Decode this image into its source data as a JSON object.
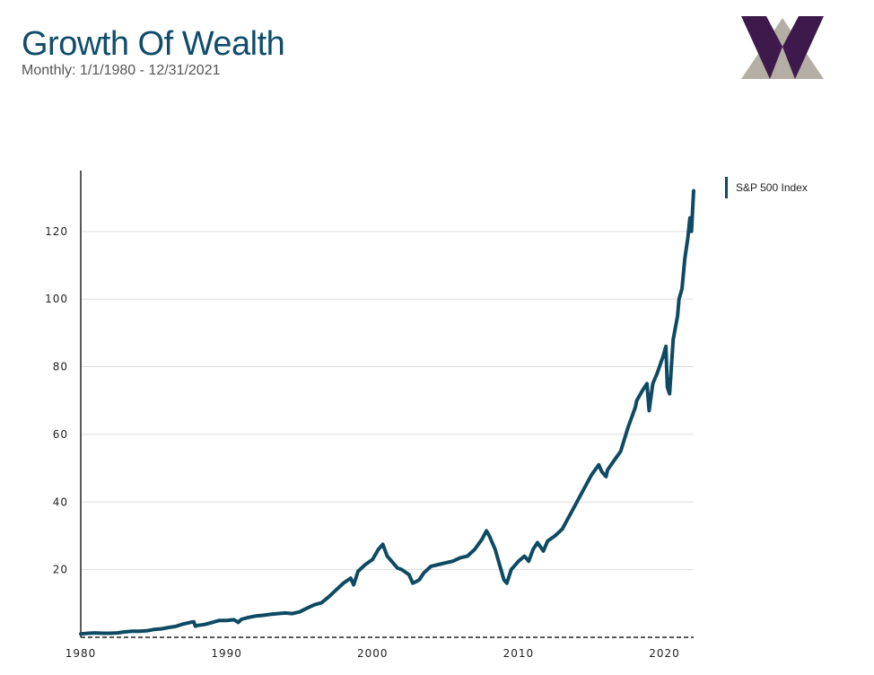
{
  "header": {
    "title": "Growth Of Wealth",
    "subtitle": "Monthly: 1/1/1980 - 12/31/2021"
  },
  "logo": {
    "icon": "w-logo-icon",
    "colors": {
      "front": "#3d1a4b",
      "back": "#b5aea4"
    }
  },
  "colors": {
    "series": "#0e4a63",
    "grid": "#dddddd",
    "axis": "#222222"
  },
  "chart_data": {
    "type": "line",
    "title": "Growth Of Wealth",
    "subtitle": "Monthly: 1/1/1980 - 12/31/2021",
    "xlabel": "",
    "ylabel": "",
    "xlim": [
      1980,
      2022
    ],
    "ylim": [
      0,
      138
    ],
    "x_ticks": [
      "1980",
      "1990",
      "2000",
      "2010",
      "2020"
    ],
    "y_ticks": [
      "20",
      "40",
      "60",
      "80",
      "100",
      "120"
    ],
    "grid": true,
    "legend_position": "top-right",
    "series": [
      {
        "name": "S&P 500 Index",
        "x": [
          1980.0,
          1980.5,
          1981.0,
          1981.5,
          1982.0,
          1982.5,
          1983.0,
          1983.5,
          1984.0,
          1984.5,
          1985.0,
          1985.5,
          1986.0,
          1986.5,
          1987.0,
          1987.5,
          1987.75,
          1987.85,
          1988.0,
          1988.5,
          1989.0,
          1989.5,
          1990.0,
          1990.5,
          1990.8,
          1991.0,
          1991.5,
          1992.0,
          1992.5,
          1993.0,
          1993.5,
          1994.0,
          1994.5,
          1995.0,
          1995.5,
          1996.0,
          1996.5,
          1997.0,
          1997.5,
          1998.0,
          1998.5,
          1998.7,
          1999.0,
          1999.5,
          2000.0,
          2000.4,
          2000.7,
          2001.0,
          2001.3,
          2001.7,
          2002.0,
          2002.5,
          2002.75,
          2003.0,
          2003.2,
          2003.5,
          2004.0,
          2004.5,
          2005.0,
          2005.5,
          2006.0,
          2006.5,
          2007.0,
          2007.5,
          2007.8,
          2008.0,
          2008.4,
          2008.8,
          2009.0,
          2009.2,
          2009.5,
          2010.0,
          2010.4,
          2010.7,
          2011.0,
          2011.3,
          2011.7,
          2012.0,
          2012.5,
          2013.0,
          2013.5,
          2014.0,
          2014.5,
          2015.0,
          2015.5,
          2015.7,
          2016.0,
          2016.1,
          2016.5,
          2017.0,
          2017.5,
          2018.0,
          2018.1,
          2018.5,
          2018.8,
          2018.95,
          2019.2,
          2019.5,
          2019.9,
          2020.1,
          2020.2,
          2020.35,
          2020.6,
          2020.9,
          2021.0,
          2021.2,
          2021.4,
          2021.6,
          2021.75,
          2021.85,
          2022.0
        ],
        "values": [
          1.0,
          1.2,
          1.3,
          1.2,
          1.2,
          1.3,
          1.6,
          1.8,
          1.8,
          1.9,
          2.3,
          2.5,
          2.9,
          3.2,
          3.9,
          4.4,
          4.6,
          3.3,
          3.5,
          3.8,
          4.4,
          5.0,
          5.0,
          5.2,
          4.4,
          5.3,
          5.9,
          6.3,
          6.5,
          6.8,
          7.0,
          7.2,
          7.0,
          7.5,
          8.6,
          9.6,
          10.2,
          12.0,
          14.0,
          16.0,
          17.5,
          15.5,
          19.5,
          21.5,
          23.0,
          26.0,
          27.5,
          24.0,
          22.5,
          20.5,
          20.0,
          18.5,
          16.0,
          16.5,
          17.0,
          19.0,
          21.0,
          21.5,
          22.0,
          22.5,
          23.5,
          24.0,
          26.0,
          29.0,
          31.5,
          30.0,
          26.0,
          20.0,
          17.0,
          16.0,
          20.0,
          22.5,
          24.0,
          22.5,
          26.0,
          28.0,
          25.5,
          28.5,
          30.0,
          32.0,
          36.0,
          40.0,
          44.0,
          48.0,
          51.0,
          49.0,
          47.5,
          49.5,
          52.0,
          55.0,
          62.0,
          68.0,
          70.0,
          73.0,
          75.0,
          67.0,
          75.0,
          78.0,
          83.0,
          86.0,
          74.0,
          72.0,
          88.0,
          95.0,
          100.0,
          103.0,
          112.0,
          118.0,
          124.0,
          120.0,
          132.0
        ]
      }
    ]
  }
}
